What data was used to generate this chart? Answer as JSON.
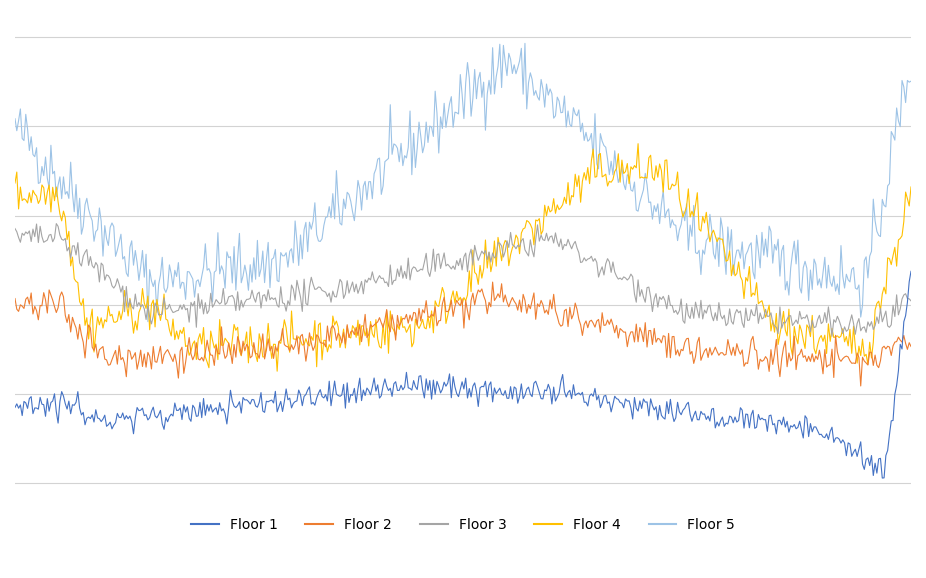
{
  "n": 500,
  "seed": 42,
  "colors": {
    "floor1": "#4472C4",
    "floor2": "#ED7D31",
    "floor3": "#A5A5A5",
    "floor4": "#FFC000",
    "floor5": "#9DC3E6"
  },
  "noise_scales": {
    "floor1": 1.5,
    "floor2": 1.8,
    "floor3": 1.5,
    "floor4": 2.5,
    "floor5": 3.5
  },
  "legend_labels": [
    "Floor 1",
    "Floor 2",
    "Floor 3",
    "Floor 4",
    "Floor 5"
  ],
  "grid_color": "#D3D3D3",
  "ylim": [
    -5,
    105
  ],
  "linewidth": 0.8,
  "legend_fontsize": 10,
  "legend_ncol": 5,
  "fig_facecolor": "#FFFFFF",
  "axes_facecolor": "#FFFFFF"
}
